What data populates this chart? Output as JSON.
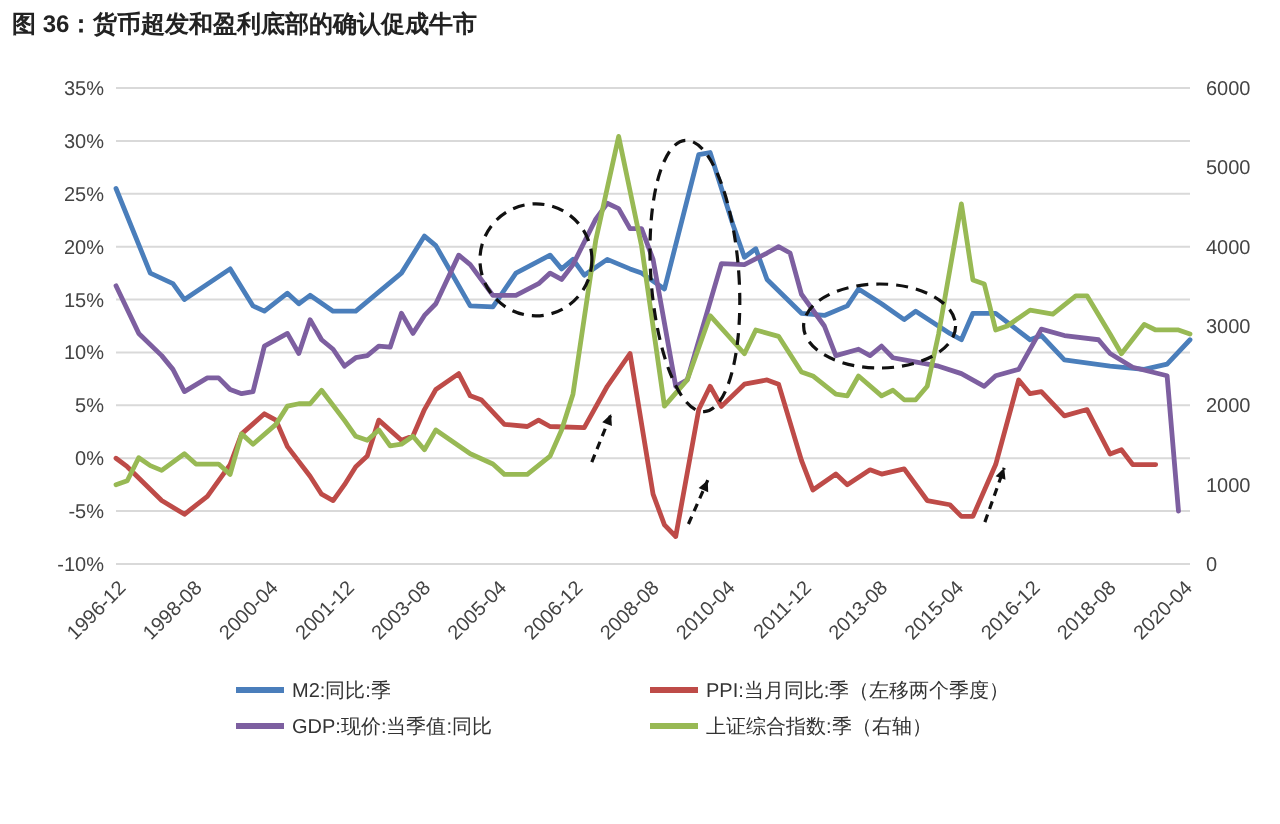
{
  "chart_data": {
    "type": "line",
    "title": "图 36：货币超发和盈利底部的确认促成牛市",
    "xlim": [
      "1996-12",
      "2020-06"
    ],
    "xticks": [
      "1996-12",
      "1998-08",
      "2000-04",
      "2001-12",
      "2003-08",
      "2005-04",
      "2006-12",
      "2008-08",
      "2010-04",
      "2011-12",
      "2013-08",
      "2015-04",
      "2016-12",
      "2018-08",
      "2020-04"
    ],
    "ylim": [
      -10,
      35
    ],
    "yticks": [
      {
        "value": -10,
        "label": "-10%"
      },
      {
        "value": -5,
        "label": "-5%"
      },
      {
        "value": 0,
        "label": "0%"
      },
      {
        "value": 5,
        "label": "5%"
      },
      {
        "value": 10,
        "label": "10%"
      },
      {
        "value": 15,
        "label": "15%"
      },
      {
        "value": 20,
        "label": "20%"
      },
      {
        "value": 25,
        "label": "25%"
      },
      {
        "value": 30,
        "label": "30%"
      },
      {
        "value": 35,
        "label": "35%"
      }
    ],
    "y2lim": [
      0,
      6000
    ],
    "y2ticks": [
      0,
      1000,
      2000,
      3000,
      4000,
      5000,
      6000
    ],
    "grid": "y",
    "legend": "bottom",
    "marker": "none",
    "line_style": "solid",
    "series": [
      {
        "name": "M2:同比:季",
        "color": "#4a7ebb",
        "x": [
          "1996-12",
          "1997-09",
          "1998-03",
          "1998-06",
          "1999-06",
          "1999-12",
          "2000-03",
          "2000-09",
          "2000-12",
          "2001-03",
          "2001-09",
          "2002-03",
          "2003-03",
          "2003-09",
          "2003-12",
          "2004-09",
          "2005-03",
          "2005-09",
          "2006-06",
          "2006-09",
          "2006-12",
          "2007-03",
          "2007-09",
          "2008-03",
          "2008-06",
          "2008-12",
          "2009-09",
          "2009-12",
          "2010-06",
          "2010-09",
          "2010-12",
          "2011-03",
          "2011-12",
          "2012-06",
          "2012-12",
          "2013-03",
          "2013-09",
          "2014-03",
          "2014-06",
          "2015-03",
          "2015-06",
          "2015-09",
          "2016-03",
          "2016-12",
          "2017-03",
          "2017-09",
          "2018-09",
          "2019-06",
          "2019-12",
          "2020-06"
        ],
        "values": [
          25.5,
          17.5,
          16.5,
          15.0,
          17.9,
          14.4,
          13.9,
          15.6,
          14.6,
          15.4,
          13.9,
          13.9,
          17.5,
          21.0,
          20.1,
          14.4,
          14.3,
          17.5,
          19.2,
          17.9,
          18.8,
          17.3,
          18.8,
          17.9,
          17.5,
          16.0,
          28.7,
          28.9,
          22.1,
          19.0,
          19.8,
          16.9,
          13.7,
          13.5,
          14.4,
          16.0,
          14.6,
          13.1,
          13.9,
          11.8,
          11.2,
          13.7,
          13.7,
          11.2,
          11.6,
          9.3,
          8.7,
          8.4,
          8.9,
          11.2
        ]
      },
      {
        "name": "PPI:当月同比:季（左移两个季度）",
        "color": "#be4b48",
        "x": [
          "1996-12",
          "1997-03",
          "1997-12",
          "1998-06",
          "1998-12",
          "1999-06",
          "1999-09",
          "2000-03",
          "2000-06",
          "2000-09",
          "2001-03",
          "2001-06",
          "2001-09",
          "2001-12",
          "2002-03",
          "2002-06",
          "2002-09",
          "2003-03",
          "2003-06",
          "2003-09",
          "2003-12",
          "2004-06",
          "2004-09",
          "2004-12",
          "2005-06",
          "2005-12",
          "2006-03",
          "2006-06",
          "2007-03",
          "2007-09",
          "2008-03",
          "2008-09",
          "2008-12",
          "2009-03",
          "2009-09",
          "2009-12",
          "2010-03",
          "2010-09",
          "2011-03",
          "2011-06",
          "2011-12",
          "2012-03",
          "2012-09",
          "2012-12",
          "2013-06",
          "2013-09",
          "2014-03",
          "2014-09",
          "2015-03",
          "2015-06",
          "2015-09",
          "2016-03",
          "2016-09",
          "2016-12",
          "2017-03",
          "2017-09",
          "2018-03",
          "2018-09",
          "2018-12",
          "2019-03",
          "2019-09"
        ],
        "values": [
          0.0,
          -0.8,
          -4.0,
          -5.3,
          -3.6,
          -0.6,
          2.3,
          4.2,
          3.6,
          1.1,
          -1.7,
          -3.4,
          -4.0,
          -2.5,
          -0.8,
          0.2,
          3.6,
          1.7,
          2.1,
          4.6,
          6.5,
          8.0,
          5.9,
          5.5,
          3.2,
          3.0,
          3.6,
          3.0,
          2.9,
          6.8,
          9.9,
          -3.4,
          -6.3,
          -7.4,
          4.6,
          6.8,
          4.9,
          7.0,
          7.4,
          7.0,
          -0.2,
          -3.0,
          -1.5,
          -2.5,
          -1.1,
          -1.5,
          -1.0,
          -4.0,
          -4.4,
          -5.5,
          -5.5,
          -0.6,
          7.4,
          6.1,
          6.3,
          4.0,
          4.6,
          0.4,
          0.8,
          -0.6,
          -0.6
        ]
      },
      {
        "name": "GDP:现价:当季值:同比",
        "color": "#7d5fa0",
        "x": [
          "1996-12",
          "1997-06",
          "1997-12",
          "1998-03",
          "1998-06",
          "1998-12",
          "1999-03",
          "1999-06",
          "1999-09",
          "1999-12",
          "2000-03",
          "2000-09",
          "2000-12",
          "2001-03",
          "2001-06",
          "2001-09",
          "2001-12",
          "2002-03",
          "2002-06",
          "2002-09",
          "2002-12",
          "2003-03",
          "2003-06",
          "2003-09",
          "2003-12",
          "2004-06",
          "2004-09",
          "2005-03",
          "2005-09",
          "2006-03",
          "2006-06",
          "2006-09",
          "2006-12",
          "2007-06",
          "2007-09",
          "2007-12",
          "2008-03",
          "2008-06",
          "2008-09",
          "2009-03",
          "2009-06",
          "2010-03",
          "2010-09",
          "2011-03",
          "2011-06",
          "2011-09",
          "2011-12",
          "2012-06",
          "2012-09",
          "2013-03",
          "2013-06",
          "2013-09",
          "2013-12",
          "2014-03",
          "2014-12",
          "2015-06",
          "2015-12",
          "2016-03",
          "2016-09",
          "2017-03",
          "2017-09",
          "2018-06",
          "2018-09",
          "2019-03",
          "2019-12",
          "2020-03"
        ],
        "values": [
          16.3,
          11.8,
          9.7,
          8.4,
          6.3,
          7.6,
          7.6,
          6.5,
          6.1,
          6.3,
          10.6,
          11.8,
          9.9,
          13.1,
          11.2,
          10.3,
          8.7,
          9.5,
          9.7,
          10.6,
          10.5,
          13.7,
          11.8,
          13.5,
          14.6,
          19.2,
          18.3,
          15.4,
          15.4,
          16.5,
          17.5,
          16.9,
          18.3,
          22.6,
          24.1,
          23.6,
          21.7,
          21.7,
          18.8,
          6.8,
          7.4,
          18.4,
          18.3,
          19.4,
          20.0,
          19.4,
          15.5,
          12.5,
          9.7,
          10.3,
          9.7,
          10.6,
          9.5,
          9.3,
          8.7,
          8.0,
          6.8,
          7.8,
          8.4,
          12.2,
          11.6,
          11.2,
          9.9,
          8.6,
          7.8,
          -5.0
        ]
      },
      {
        "name": "上证综合指数:季（右轴）",
        "color": "#98b954",
        "axis": "y2",
        "x": [
          "1996-12",
          "1997-03",
          "1997-06",
          "1997-09",
          "1997-12",
          "1998-06",
          "1998-09",
          "1999-03",
          "1999-06",
          "1999-09",
          "1999-12",
          "2000-06",
          "2000-09",
          "2000-12",
          "2001-03",
          "2001-06",
          "2001-12",
          "2002-03",
          "2002-06",
          "2002-09",
          "2002-12",
          "2003-03",
          "2003-06",
          "2003-09",
          "2003-12",
          "2004-09",
          "2005-03",
          "2005-06",
          "2005-12",
          "2006-06",
          "2006-09",
          "2006-12",
          "2007-06",
          "2007-12",
          "2008-06",
          "2008-12",
          "2009-06",
          "2009-12",
          "2010-09",
          "2010-12",
          "2011-06",
          "2011-12",
          "2012-03",
          "2012-09",
          "2012-12",
          "2013-03",
          "2013-09",
          "2013-12",
          "2014-03",
          "2014-06",
          "2014-09",
          "2014-12",
          "2015-06",
          "2015-09",
          "2015-12",
          "2016-03",
          "2016-06",
          "2016-12",
          "2017-06",
          "2017-12",
          "2018-03",
          "2018-09",
          "2018-12",
          "2019-06",
          "2019-09",
          "2020-03",
          "2020-06"
        ],
        "values": [
          1000,
          1050,
          1340,
          1240,
          1180,
          1390,
          1260,
          1260,
          1130,
          1640,
          1510,
          1760,
          1990,
          2020,
          2020,
          2190,
          1810,
          1610,
          1560,
          1690,
          1490,
          1510,
          1610,
          1440,
          1690,
          1390,
          1260,
          1130,
          1130,
          1360,
          1690,
          2140,
          4080,
          5390,
          4010,
          1990,
          2320,
          3130,
          2650,
          2950,
          2870,
          2420,
          2370,
          2140,
          2120,
          2370,
          2120,
          2190,
          2070,
          2070,
          2240,
          2900,
          4540,
          3580,
          3530,
          2950,
          3000,
          3200,
          3150,
          3380,
          3380,
          2900,
          2650,
          3020,
          2950,
          2950,
          2900
        ]
      }
    ]
  }
}
